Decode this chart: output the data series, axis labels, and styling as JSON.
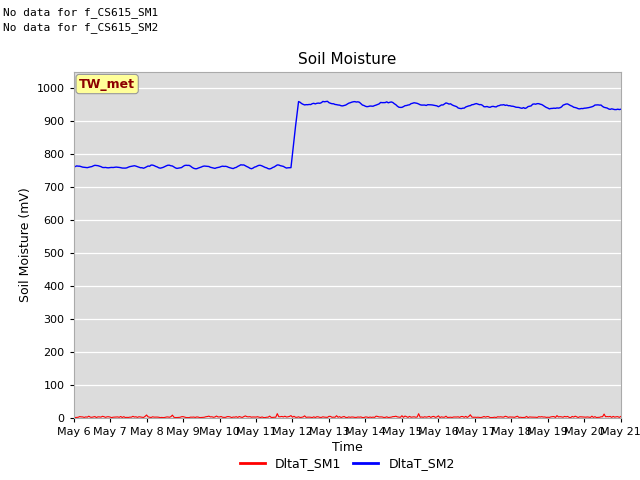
{
  "title": "Soil Moisture",
  "xlabel": "Time",
  "ylabel": "Soil Moisture (mV)",
  "ylim": [
    0,
    1050
  ],
  "yticks": [
    0,
    100,
    200,
    300,
    400,
    500,
    600,
    700,
    800,
    900,
    1000
  ],
  "x_tick_labels": [
    "May 6",
    "May 7",
    "May 8",
    "May 9",
    "May 10",
    "May 11",
    "May 12",
    "May 13",
    "May 14",
    "May 15",
    "May 16",
    "May 17",
    "May 18",
    "May 19",
    "May 20",
    "May 21"
  ],
  "no_data_text1": "No data for f_CS615_SM1",
  "no_data_text2": "No data for f_CS615_SM2",
  "tw_met_label": "TW_met",
  "legend_entries": [
    "DltaT_SM1",
    "DltaT_SM2"
  ],
  "sm1_color": "#ff0000",
  "sm2_color": "#0000ff",
  "background_color": "#dcdcdc",
  "tw_met_bg": "#ffff99",
  "tw_met_border": "#888888",
  "title_fontsize": 11,
  "axis_label_fontsize": 9,
  "tick_fontsize": 8,
  "legend_fontsize": 9,
  "annotation_fontsize": 8,
  "tw_met_fontsize": 9
}
